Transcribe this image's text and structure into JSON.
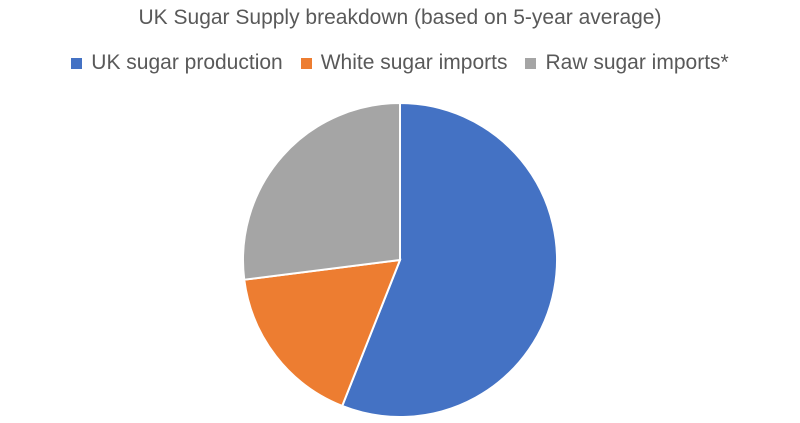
{
  "chart_data": {
    "type": "pie",
    "title": "UK Sugar Supply breakdown (based on 5-year average)",
    "legend_position": "top",
    "categories": [
      "UK sugar production",
      "White sugar imports",
      "Raw sugar imports*"
    ],
    "values": [
      56,
      17,
      27
    ],
    "value_unit": "%",
    "colors": [
      "#4472C4",
      "#ED7D31",
      "#A5A5A5"
    ]
  }
}
